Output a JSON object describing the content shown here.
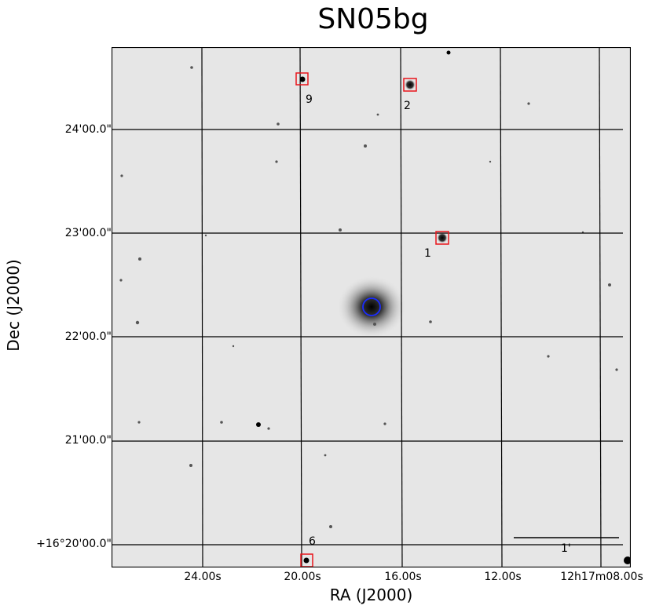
{
  "title": "SN05bg",
  "axes": {
    "xlabel": "RA (J2000)",
    "ylabel": "Dec (J2000)",
    "x_ticks": [
      "24.00s",
      "20.00s",
      "16.00s",
      "12.00s",
      "12h17m08.00s"
    ],
    "y_ticks": [
      "24'00.0\"",
      "23'00.0\"",
      "22'00.0\"",
      "21'00.0\"",
      "+16°20'00.0\""
    ]
  },
  "markers": [
    {
      "label": "9"
    },
    {
      "label": "2"
    },
    {
      "label": "1"
    },
    {
      "label": "6"
    }
  ],
  "scale_bar": {
    "label": "1'"
  },
  "colors": {
    "marker": "#e8151b",
    "target": "#1a2cff",
    "grid": "#000000",
    "sky": "#e6e6e6"
  }
}
